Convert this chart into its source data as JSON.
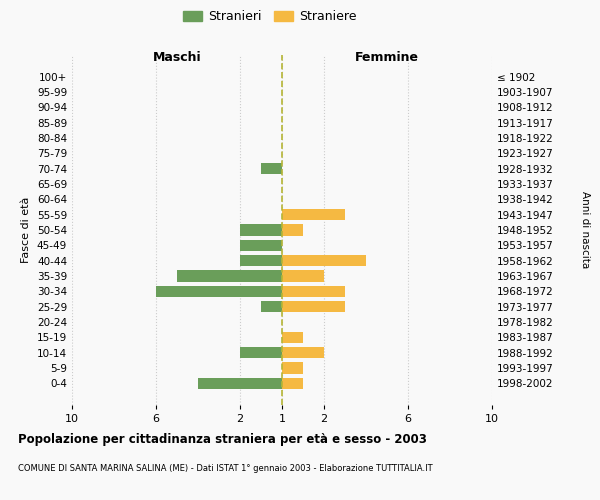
{
  "age_groups": [
    "0-4",
    "5-9",
    "10-14",
    "15-19",
    "20-24",
    "25-29",
    "30-34",
    "35-39",
    "40-44",
    "45-49",
    "50-54",
    "55-59",
    "60-64",
    "65-69",
    "70-74",
    "75-79",
    "80-84",
    "85-89",
    "90-94",
    "95-99",
    "100+"
  ],
  "birth_years": [
    "1998-2002",
    "1993-1997",
    "1988-1992",
    "1983-1987",
    "1978-1982",
    "1973-1977",
    "1968-1972",
    "1963-1967",
    "1958-1962",
    "1953-1957",
    "1948-1952",
    "1943-1947",
    "1938-1942",
    "1933-1937",
    "1928-1932",
    "1923-1927",
    "1918-1922",
    "1913-1917",
    "1908-1912",
    "1903-1907",
    "≤ 1902"
  ],
  "maschi": [
    4,
    0,
    2,
    0,
    0,
    1,
    6,
    5,
    2,
    2,
    2,
    0,
    0,
    0,
    1,
    0,
    0,
    0,
    0,
    0,
    0
  ],
  "femmine": [
    1,
    1,
    2,
    1,
    0,
    3,
    3,
    2,
    4,
    0,
    1,
    3,
    0,
    0,
    0,
    0,
    0,
    0,
    0,
    0,
    0
  ],
  "color_maschi": "#6a9e5a",
  "color_femmine": "#f5b942",
  "color_center_line": "#b5b535",
  "title_main": "Popolazione per cittadinanza straniera per età e sesso - 2003",
  "title_sub": "COMUNE DI SANTA MARINA SALINA (ME) - Dati ISTAT 1° gennaio 2003 - Elaborazione TUTTITALIA.IT",
  "label_maschi": "Maschi",
  "label_femmine": "Femmine",
  "label_fasce": "Fasce di età",
  "label_anni": "Anni di nascita",
  "legend_stranieri": "Stranieri",
  "legend_straniere": "Straniere",
  "bg_color": "#f9f9f9",
  "grid_color": "#cccccc"
}
